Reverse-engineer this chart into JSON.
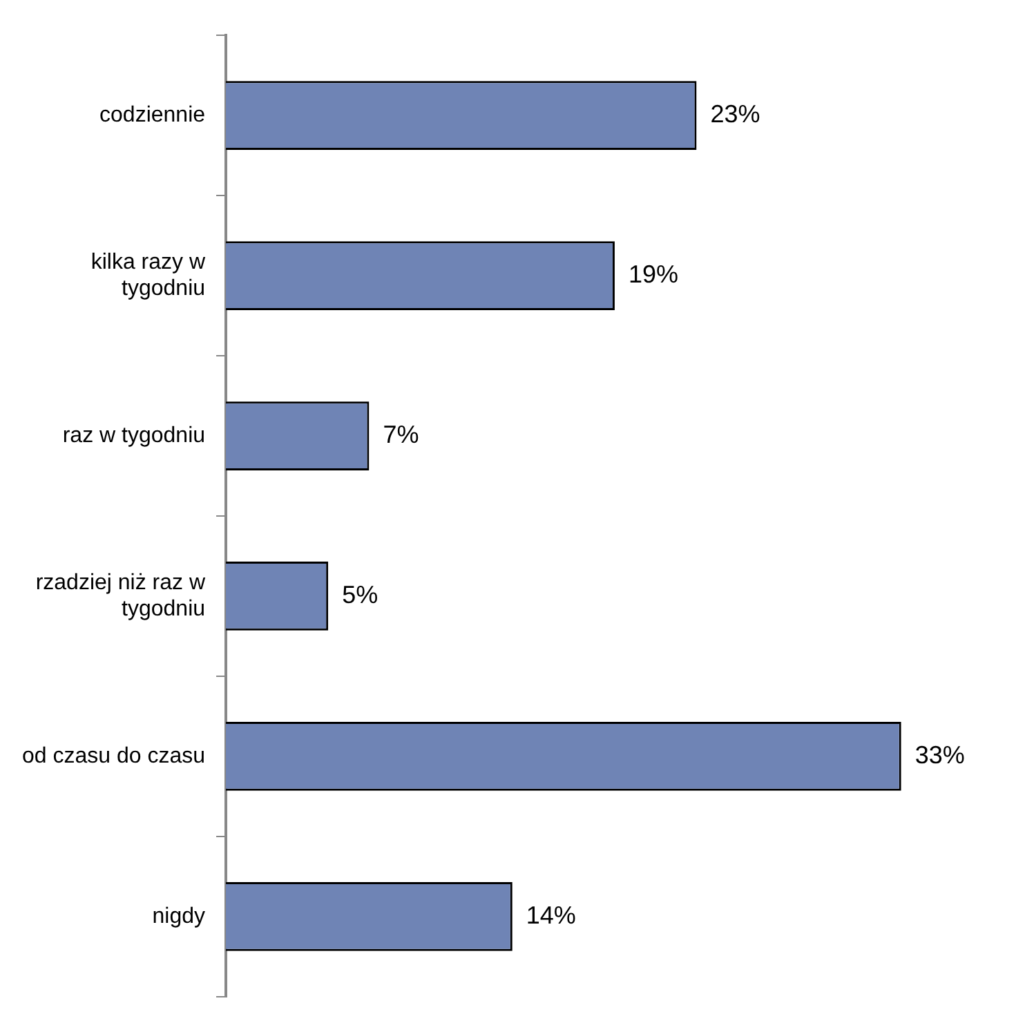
{
  "chart_data": {
    "type": "bar",
    "orientation": "horizontal",
    "categories": [
      "codziennie",
      "kilka razy w tygodniu",
      "raz w tygodniu",
      "rzadziej niż raz w tygodniu",
      "od czasu do czasu",
      "nigdy"
    ],
    "values": [
      23,
      19,
      7,
      5,
      33,
      14
    ],
    "value_labels": [
      "23%",
      "19%",
      "7%",
      "5%",
      "33%",
      "14%"
    ],
    "color": "#6f84b5"
  }
}
